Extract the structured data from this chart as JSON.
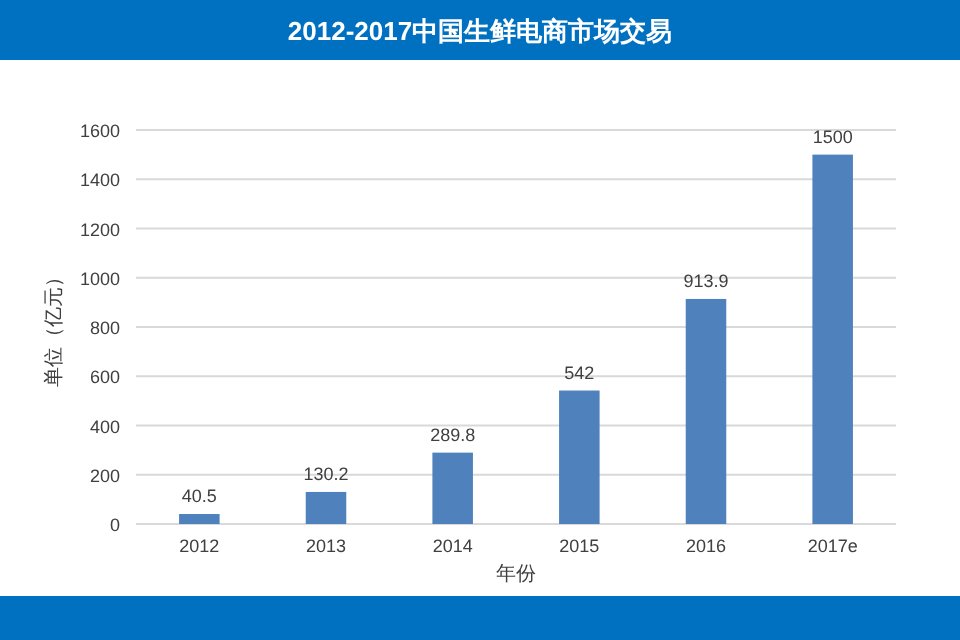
{
  "chart_data": {
    "type": "bar",
    "title": "2012-2017中国生鲜电商市场交易",
    "xlabel": "年份",
    "ylabel": "单位（亿元）",
    "categories": [
      "2012",
      "2013",
      "2014",
      "2015",
      "2016",
      "2017e"
    ],
    "values": [
      40.5,
      130.2,
      289.8,
      542,
      913.9,
      1500
    ],
    "color": "#4f81bd",
    "ylim": [
      0,
      1600
    ],
    "yticks": [
      0,
      200,
      400,
      600,
      800,
      1000,
      1200,
      1400,
      1600
    ],
    "grid": "y",
    "data_labels": true
  }
}
